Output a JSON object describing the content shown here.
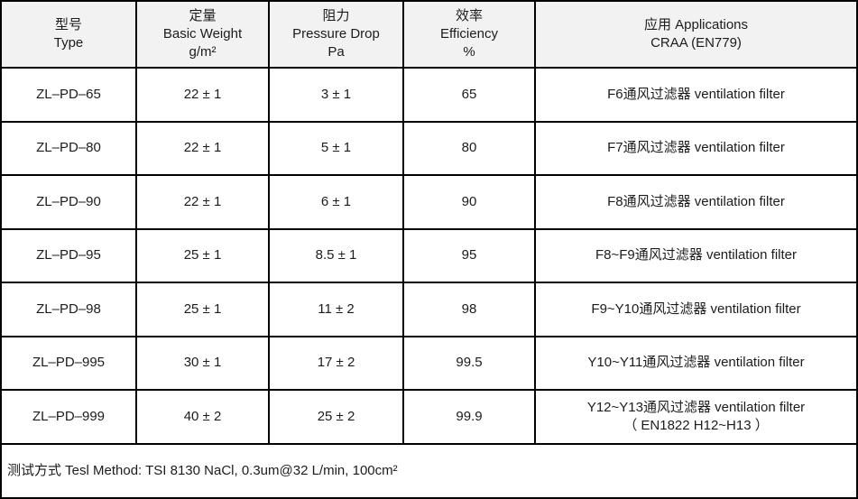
{
  "accent_colors": {
    "border": "#000000",
    "header_background": "#f2f2f2",
    "text": "#1c1c1c"
  },
  "table": {
    "columns": [
      {
        "key": "type",
        "lines": [
          "型号",
          "Type"
        ]
      },
      {
        "key": "basic_weight",
        "lines": [
          "定量",
          "Basic Weight",
          "g/m²"
        ]
      },
      {
        "key": "pressure_drop",
        "lines": [
          "阻力",
          "Pressure Drop",
          "Pa"
        ]
      },
      {
        "key": "efficiency",
        "lines": [
          "效率",
          "Efficiency",
          "%"
        ]
      },
      {
        "key": "application",
        "lines": [
          "应用 Applications",
          "CRAA (EN779)"
        ]
      }
    ],
    "rows": [
      {
        "type": "ZL–PD–65",
        "basic_weight": "22 ± 1",
        "pressure_drop": "3 ± 1",
        "efficiency": "65",
        "application": [
          "F6通风过滤器 ventilation filter"
        ]
      },
      {
        "type": "ZL–PD–80",
        "basic_weight": "22 ± 1",
        "pressure_drop": "5 ± 1",
        "efficiency": "80",
        "application": [
          "F7通风过滤器 ventilation filter"
        ]
      },
      {
        "type": "ZL–PD–90",
        "basic_weight": "22 ± 1",
        "pressure_drop": "6 ± 1",
        "efficiency": "90",
        "application": [
          "F8通风过滤器 ventilation filter"
        ]
      },
      {
        "type": "ZL–PD–95",
        "basic_weight": "25 ± 1",
        "pressure_drop": "8.5 ± 1",
        "efficiency": "95",
        "application": [
          "F8~F9通风过滤器 ventilation filter"
        ]
      },
      {
        "type": "ZL–PD–98",
        "basic_weight": "25 ± 1",
        "pressure_drop": "11 ± 2",
        "efficiency": "98",
        "application": [
          "F9~Y10通风过滤器 ventilation filter"
        ]
      },
      {
        "type": "ZL–PD–995",
        "basic_weight": "30 ± 1",
        "pressure_drop": "17 ± 2",
        "efficiency": "99.5",
        "application": [
          "Y10~Y11通风过滤器 ventilation filter"
        ]
      },
      {
        "type": "ZL–PD–999",
        "basic_weight": "40 ± 2",
        "pressure_drop": "25 ± 2",
        "efficiency": "99.9",
        "application": [
          "Y12~Y13通风过滤器 ventilation filter",
          "（ EN1822 H12~H13 ）"
        ]
      }
    ],
    "footer_note": "测试方式 Tesl Method: TSI 8130 NaCl,  0.3um@32 L/min, 100cm²"
  }
}
